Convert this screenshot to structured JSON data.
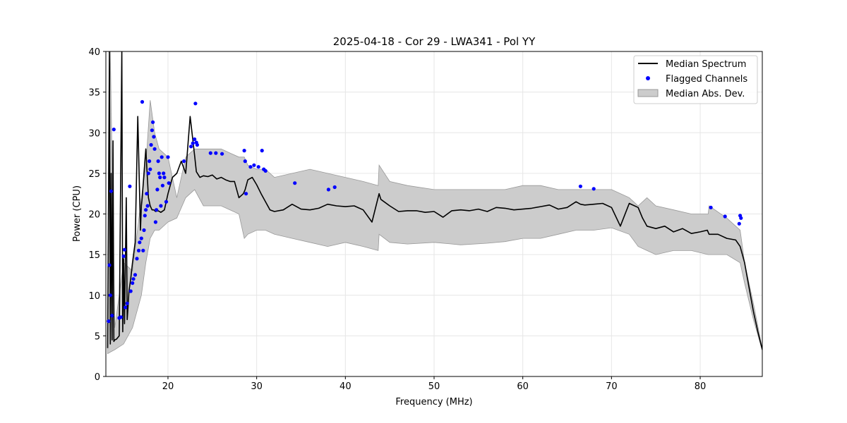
{
  "chart_data": {
    "type": "line",
    "title": "2025-04-18 - Cor 29 - LWA341 - Pol YY",
    "xlabel": "Frequency (MHz)",
    "ylabel": "Power (CPU)",
    "xlim": [
      13.0,
      87.0
    ],
    "ylim": [
      0,
      40
    ],
    "xticks": [
      20,
      30,
      40,
      50,
      60,
      70,
      80
    ],
    "yticks": [
      0,
      5,
      10,
      15,
      20,
      25,
      30,
      35,
      40
    ],
    "grid": true,
    "legend_position": "top-right",
    "legend": [
      "Median Spectrum",
      "Flagged Channels",
      "Median Abs. Dev."
    ],
    "colors": {
      "median": "#000000",
      "flagged": "#0000ff",
      "mad_fill": "#cccccc",
      "mad_edge": "#999999"
    },
    "median_spectrum": {
      "name": "Median Spectrum",
      "x": [
        13.2,
        13.4,
        13.5,
        13.6,
        13.7,
        13.8,
        13.9,
        14.0,
        14.2,
        14.5,
        14.8,
        14.9,
        15.0,
        15.1,
        15.3,
        15.4,
        15.5,
        15.6,
        15.8,
        16.0,
        16.3,
        16.6,
        16.9,
        17.0,
        17.1,
        17.3,
        17.5,
        17.8,
        18.0,
        18.2,
        18.4,
        18.6,
        18.9,
        19.2,
        19.6,
        20.0,
        20.5,
        21.0,
        21.5,
        22.0,
        22.5,
        23.0,
        23.2,
        23.6,
        24.0,
        24.5,
        25.0,
        25.5,
        26.0,
        26.5,
        27.0,
        27.5,
        28.0,
        28.5,
        28.7,
        29.0,
        29.5,
        30.0,
        30.5,
        31.0,
        31.5,
        32.0,
        33.0,
        34.0,
        35.0,
        36.0,
        37.0,
        38.0,
        39.0,
        40.0,
        41.0,
        42.0,
        43.0,
        43.8,
        44.0,
        45.0,
        46.0,
        47.0,
        48.0,
        49.0,
        50.0,
        51.0,
        52.0,
        53.0,
        54.0,
        55.0,
        56.0,
        57.0,
        58.0,
        59.0,
        60.0,
        61.0,
        62.0,
        63.0,
        64.0,
        65.0,
        66.0,
        66.5,
        67.0,
        68.0,
        69.0,
        70.0,
        71.0,
        72.0,
        73.0,
        73.5,
        74.0,
        75.0,
        76.0,
        77.0,
        78.0,
        79.0,
        80.0,
        80.8,
        81.0,
        82.0,
        83.0,
        84.0,
        84.5,
        85.0,
        85.5,
        86.0,
        86.5,
        87.0
      ],
      "y": [
        3.5,
        40,
        4.0,
        25,
        4.5,
        29,
        4.3,
        4.5,
        4.6,
        5.0,
        40,
        5.5,
        14.5,
        6.5,
        22,
        7.0,
        8.5,
        10.5,
        12.0,
        14.0,
        16.5,
        32,
        18,
        21,
        22,
        25,
        28,
        22,
        21,
        20.5,
        20.5,
        20.3,
        20.4,
        20.2,
        20.5,
        22.5,
        24.5,
        25,
        26.5,
        25,
        32,
        27.2,
        25.2,
        24.5,
        24.7,
        24.6,
        24.8,
        24.3,
        24.5,
        24.2,
        24.0,
        24.0,
        22.0,
        22.5,
        23.0,
        24.2,
        24.5,
        23.6,
        22.5,
        21.5,
        20.5,
        20.3,
        20.5,
        21.2,
        20.6,
        20.5,
        20.7,
        21.2,
        21.0,
        20.9,
        21.0,
        20.5,
        19.0,
        22.5,
        21.8,
        21.0,
        20.3,
        20.4,
        20.4,
        20.2,
        20.3,
        19.6,
        20.4,
        20.5,
        20.4,
        20.6,
        20.3,
        20.8,
        20.7,
        20.5,
        20.6,
        20.7,
        20.9,
        21.1,
        20.6,
        20.8,
        21.5,
        21.2,
        21.1,
        21.2,
        21.3,
        20.8,
        18.5,
        21.3,
        20.8,
        19.5,
        18.5,
        18.2,
        18.5,
        17.8,
        18.2,
        17.6,
        17.8,
        18.0,
        17.5,
        17.5,
        17.0,
        16.8,
        16.0,
        14.0,
        11.0,
        8.0,
        5.5,
        3.3
      ]
    },
    "mad_band": {
      "name": "Median Abs. Dev.",
      "x": [
        13.2,
        13.5,
        14.0,
        15.0,
        16.0,
        17.0,
        17.5,
        18.0,
        18.5,
        19.0,
        20.0,
        21.0,
        22.0,
        23.0,
        24.0,
        25.0,
        26.0,
        27.0,
        28.0,
        28.6,
        29.0,
        30.0,
        31.0,
        32.0,
        34.0,
        36.0,
        38.0,
        40.0,
        42.0,
        43.7,
        43.8,
        45.0,
        47.0,
        50.0,
        53.0,
        56.0,
        58.0,
        60.0,
        62.0,
        64.0,
        66.0,
        68.0,
        70.0,
        72.0,
        73.0,
        74.0,
        75.0,
        77.0,
        79.0,
        80.9,
        81.0,
        83.0,
        84.5,
        85.0,
        86.0,
        87.0
      ],
      "upper": [
        4.5,
        40,
        6,
        14,
        13,
        22,
        26,
        34,
        30,
        28,
        27,
        22,
        27,
        28,
        28,
        28,
        28,
        27.5,
        27,
        27,
        26,
        25.5,
        25.5,
        24.5,
        25,
        25.5,
        25,
        24.5,
        24,
        23.5,
        26,
        24,
        23.5,
        23,
        23,
        23,
        23,
        23.5,
        23.5,
        23,
        23,
        23,
        23,
        22,
        21,
        22,
        21,
        20.5,
        20,
        20,
        21,
        19.5,
        18,
        14,
        9,
        3.4
      ],
      "lower": [
        2.8,
        3,
        3.3,
        4,
        6,
        10,
        14,
        17,
        18,
        18,
        19,
        19.5,
        22,
        23,
        21,
        21,
        21,
        20.5,
        20,
        17,
        17.5,
        18,
        18,
        17.5,
        17,
        16.5,
        16,
        16.5,
        16,
        15.5,
        17.5,
        16.5,
        16.3,
        16.5,
        16.2,
        16.4,
        16.6,
        17,
        17,
        17.5,
        18,
        18,
        18.3,
        17.5,
        16,
        15.5,
        15,
        15.5,
        15.5,
        15,
        15,
        15,
        14,
        11.5,
        7,
        3.2
      ]
    },
    "flagged_channels": {
      "name": "Flagged Channels",
      "x": [
        13.3,
        13.4,
        13.5,
        13.6,
        13.7,
        13.9,
        14.5,
        14.7,
        15.0,
        15.1,
        15.2,
        15.4,
        15.7,
        15.8,
        16.0,
        16.1,
        16.3,
        16.5,
        16.7,
        16.8,
        17.0,
        17.1,
        17.2,
        17.3,
        17.4,
        17.5,
        17.6,
        17.7,
        17.8,
        17.9,
        18.0,
        18.1,
        18.2,
        18.3,
        18.4,
        18.5,
        18.6,
        18.7,
        18.8,
        18.9,
        19.0,
        19.1,
        19.2,
        19.3,
        19.4,
        19.5,
        19.6,
        19.8,
        20.0,
        20.1,
        21.8,
        22.6,
        22.8,
        23.0,
        23.1,
        23.2,
        23.3,
        24.8,
        25.4,
        26.1,
        28.6,
        28.7,
        28.8,
        29.3,
        29.7,
        30.2,
        30.6,
        30.8,
        31.0,
        34.3,
        38.1,
        38.8,
        66.5,
        68.0,
        81.2,
        82.8,
        84.4,
        84.5,
        84.6
      ],
      "y": [
        6.8,
        13.7,
        10.0,
        22.8,
        7.5,
        30.4,
        7.2,
        7.3,
        14.8,
        15.6,
        8.5,
        9.0,
        23.4,
        10.5,
        11.5,
        12.0,
        12.5,
        14.5,
        15.5,
        16.5,
        17.0,
        33.8,
        15.5,
        18.0,
        19.8,
        20.5,
        22.5,
        21.0,
        25.0,
        26.5,
        25.5,
        28.5,
        30.3,
        31.3,
        29.5,
        28.0,
        19.0,
        20.5,
        23.0,
        26.5,
        25.0,
        24.5,
        21.0,
        27.0,
        23.5,
        25.0,
        24.5,
        21.5,
        27.0,
        23.8,
        26.5,
        28.3,
        28.7,
        29.2,
        33.6,
        28.8,
        28.5,
        27.5,
        27.5,
        27.4,
        27.8,
        26.5,
        22.5,
        25.8,
        26.0,
        25.8,
        27.8,
        25.5,
        25.3,
        23.8,
        23.0,
        23.3,
        23.4,
        23.1,
        20.8,
        19.7,
        18.8,
        19.8,
        19.5
      ]
    }
  }
}
